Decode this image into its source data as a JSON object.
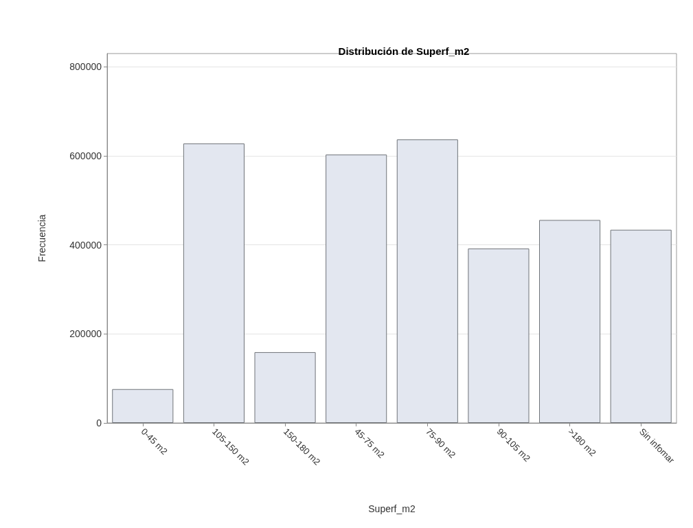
{
  "chart_data": {
    "type": "bar",
    "title": "Distribución de Superf_m2",
    "xlabel": "Superf_m2",
    "ylabel": "Frecuencia",
    "categories": [
      "0-45 m2",
      "105-150 m2",
      "150-180 m2",
      "45-75 m2",
      "75-90 m2",
      "90-105 m2",
      ">180 m2",
      "Sin infomar"
    ],
    "values": [
      76000,
      628000,
      159000,
      603000,
      637000,
      392000,
      456000,
      434000
    ],
    "color": "#e3e7f0",
    "ylim": [
      0,
      830000
    ],
    "yticks": [
      0,
      200000,
      400000,
      600000,
      800000
    ],
    "grid": "y"
  }
}
